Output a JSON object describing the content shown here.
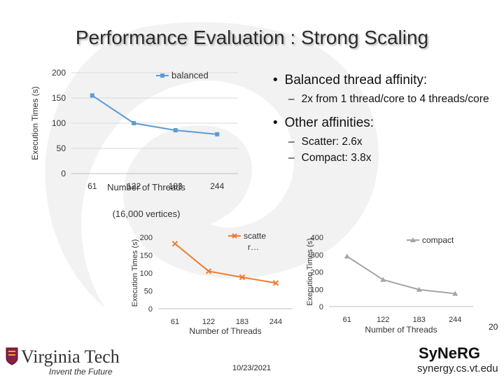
{
  "title": "Performance Evaluation :  Strong Scaling",
  "page_number": "20",
  "date": "10/23/2021",
  "footer_url": "synergy.cs.vt.edu",
  "university": {
    "name": "Virginia Tech",
    "tagline": "Invent the Future"
  },
  "lab_logo": "SyNeRG",
  "bullets": [
    {
      "text": "Balanced thread affinity:",
      "subs": [
        "2x from 1 thread/core to 4 threads/core"
      ]
    },
    {
      "text": "Other affinities:",
      "subs": [
        "Scatter: 2.6x",
        "Compact: 3.8x"
      ]
    }
  ],
  "chart_data": [
    {
      "type": "line",
      "x": [
        "61",
        "122",
        "183",
        "244"
      ],
      "series": [
        {
          "name": "balanced",
          "values": [
            155,
            100,
            86,
            78
          ],
          "color": "#5b9bd5",
          "marker": "square"
        }
      ],
      "ylabel": "Execution Times (s)",
      "xlabel": "Number of Threads",
      "xlabel2": "(16,000 vertices)",
      "yticks": [
        0,
        50,
        100,
        150,
        200
      ],
      "ylim": [
        0,
        200
      ],
      "legend": "top-right",
      "grid": true
    },
    {
      "type": "line",
      "x": [
        "61",
        "122",
        "183",
        "244"
      ],
      "series": [
        {
          "name": "scatte r…",
          "values": [
            182,
            105,
            88,
            72
          ],
          "color": "#ed7d31",
          "marker": "x"
        }
      ],
      "ylabel": "Execution Times (s)",
      "xlabel": "Number of Threads",
      "yticks": [
        0,
        50,
        100,
        150,
        200
      ],
      "ylim": [
        0,
        200
      ],
      "legend": "top-right",
      "grid": false
    },
    {
      "type": "line",
      "x": [
        "61",
        "122",
        "183",
        "244"
      ],
      "series": [
        {
          "name": "compact",
          "values": [
            290,
            155,
            98,
            75
          ],
          "color": "#a5a5a5",
          "marker": "triangle"
        }
      ],
      "ylabel": "Execution Times (s)",
      "xlabel": "Number of Threads",
      "yticks": [
        0,
        100,
        200,
        300,
        400
      ],
      "ylim": [
        0,
        400
      ],
      "legend": "top-right",
      "grid": false
    }
  ]
}
